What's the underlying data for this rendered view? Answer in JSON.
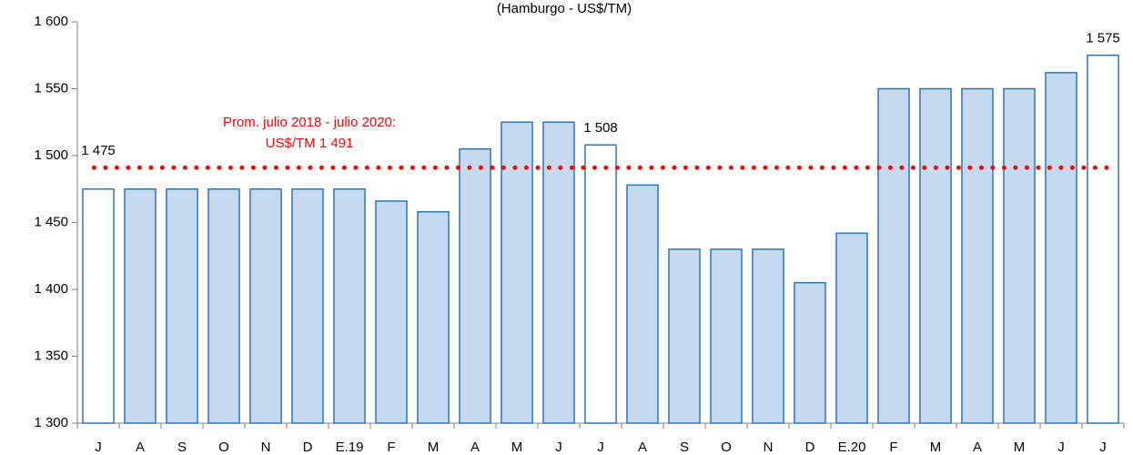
{
  "chart_data": {
    "type": "bar",
    "title": "(Hamburgo - US$/TM)",
    "categories": [
      "J",
      "A",
      "S",
      "O",
      "N",
      "D",
      "E.19",
      "F",
      "M",
      "A",
      "M",
      "J",
      "J",
      "A",
      "S",
      "O",
      "N",
      "D",
      "E.20",
      "F",
      "M",
      "A",
      "M",
      "J",
      "J"
    ],
    "values": [
      1475,
      1475,
      1475,
      1475,
      1475,
      1475,
      1475,
      1466,
      1458,
      1505,
      1525,
      1525,
      1508,
      1478,
      1430,
      1430,
      1430,
      1405,
      1442,
      1550,
      1550,
      1550,
      1550,
      1562,
      1575
    ],
    "value_labels": [
      "1 475",
      null,
      null,
      null,
      null,
      null,
      null,
      null,
      null,
      null,
      null,
      null,
      "1 508",
      null,
      null,
      null,
      null,
      null,
      null,
      null,
      null,
      null,
      null,
      null,
      "1 575"
    ],
    "colors": [
      "#ffffff",
      "#c5d9f1",
      "#c5d9f1",
      "#c5d9f1",
      "#c5d9f1",
      "#c5d9f1",
      "#c5d9f1",
      "#c5d9f1",
      "#c5d9f1",
      "#c5d9f1",
      "#c5d9f1",
      "#c5d9f1",
      "#ffffff",
      "#c5d9f1",
      "#c5d9f1",
      "#c5d9f1",
      "#c5d9f1",
      "#c5d9f1",
      "#c5d9f1",
      "#c5d9f1",
      "#c5d9f1",
      "#c5d9f1",
      "#c5d9f1",
      "#c5d9f1",
      "#ffffff"
    ],
    "edge_color": "#2e75b6",
    "ylim": [
      1300,
      1600
    ],
    "yticks": [
      {
        "value": 1300,
        "label": "1 300"
      },
      {
        "value": 1350,
        "label": "1 350"
      },
      {
        "value": 1400,
        "label": "1 400"
      },
      {
        "value": 1450,
        "label": "1 450"
      },
      {
        "value": 1500,
        "label": "1 500"
      },
      {
        "value": 1550,
        "label": "1 550"
      },
      {
        "value": 1600,
        "label": "1 600"
      }
    ],
    "reference_line": {
      "value": 1491,
      "color": "#ff0000",
      "label": [
        "Prom. julio 2018 - julio 2020:",
        "US$/TM 1 491"
      ]
    }
  }
}
